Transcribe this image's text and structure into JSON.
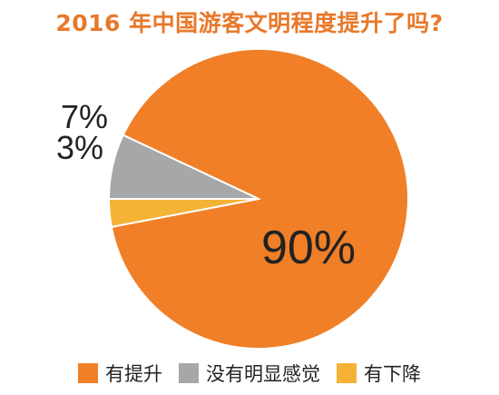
{
  "colors": {
    "title": "#E8782A",
    "text": "#222222"
  },
  "chart_data": {
    "type": "pie",
    "title": "2016 年中国游客文明程度提升了吗?",
    "unit": "%",
    "slices": [
      {
        "name": "有提升",
        "value": 90,
        "label": "90%",
        "color": "#F07F27"
      },
      {
        "name": "没有明显感觉",
        "value": 7,
        "label": "7%",
        "color": "#A5A7A9"
      },
      {
        "name": "有下降",
        "value": 3,
        "label": "3%",
        "color": "#F5B335"
      }
    ],
    "legend": [
      "有提升",
      "没有明显感觉",
      "有下降"
    ],
    "legend_position": "bottom"
  }
}
